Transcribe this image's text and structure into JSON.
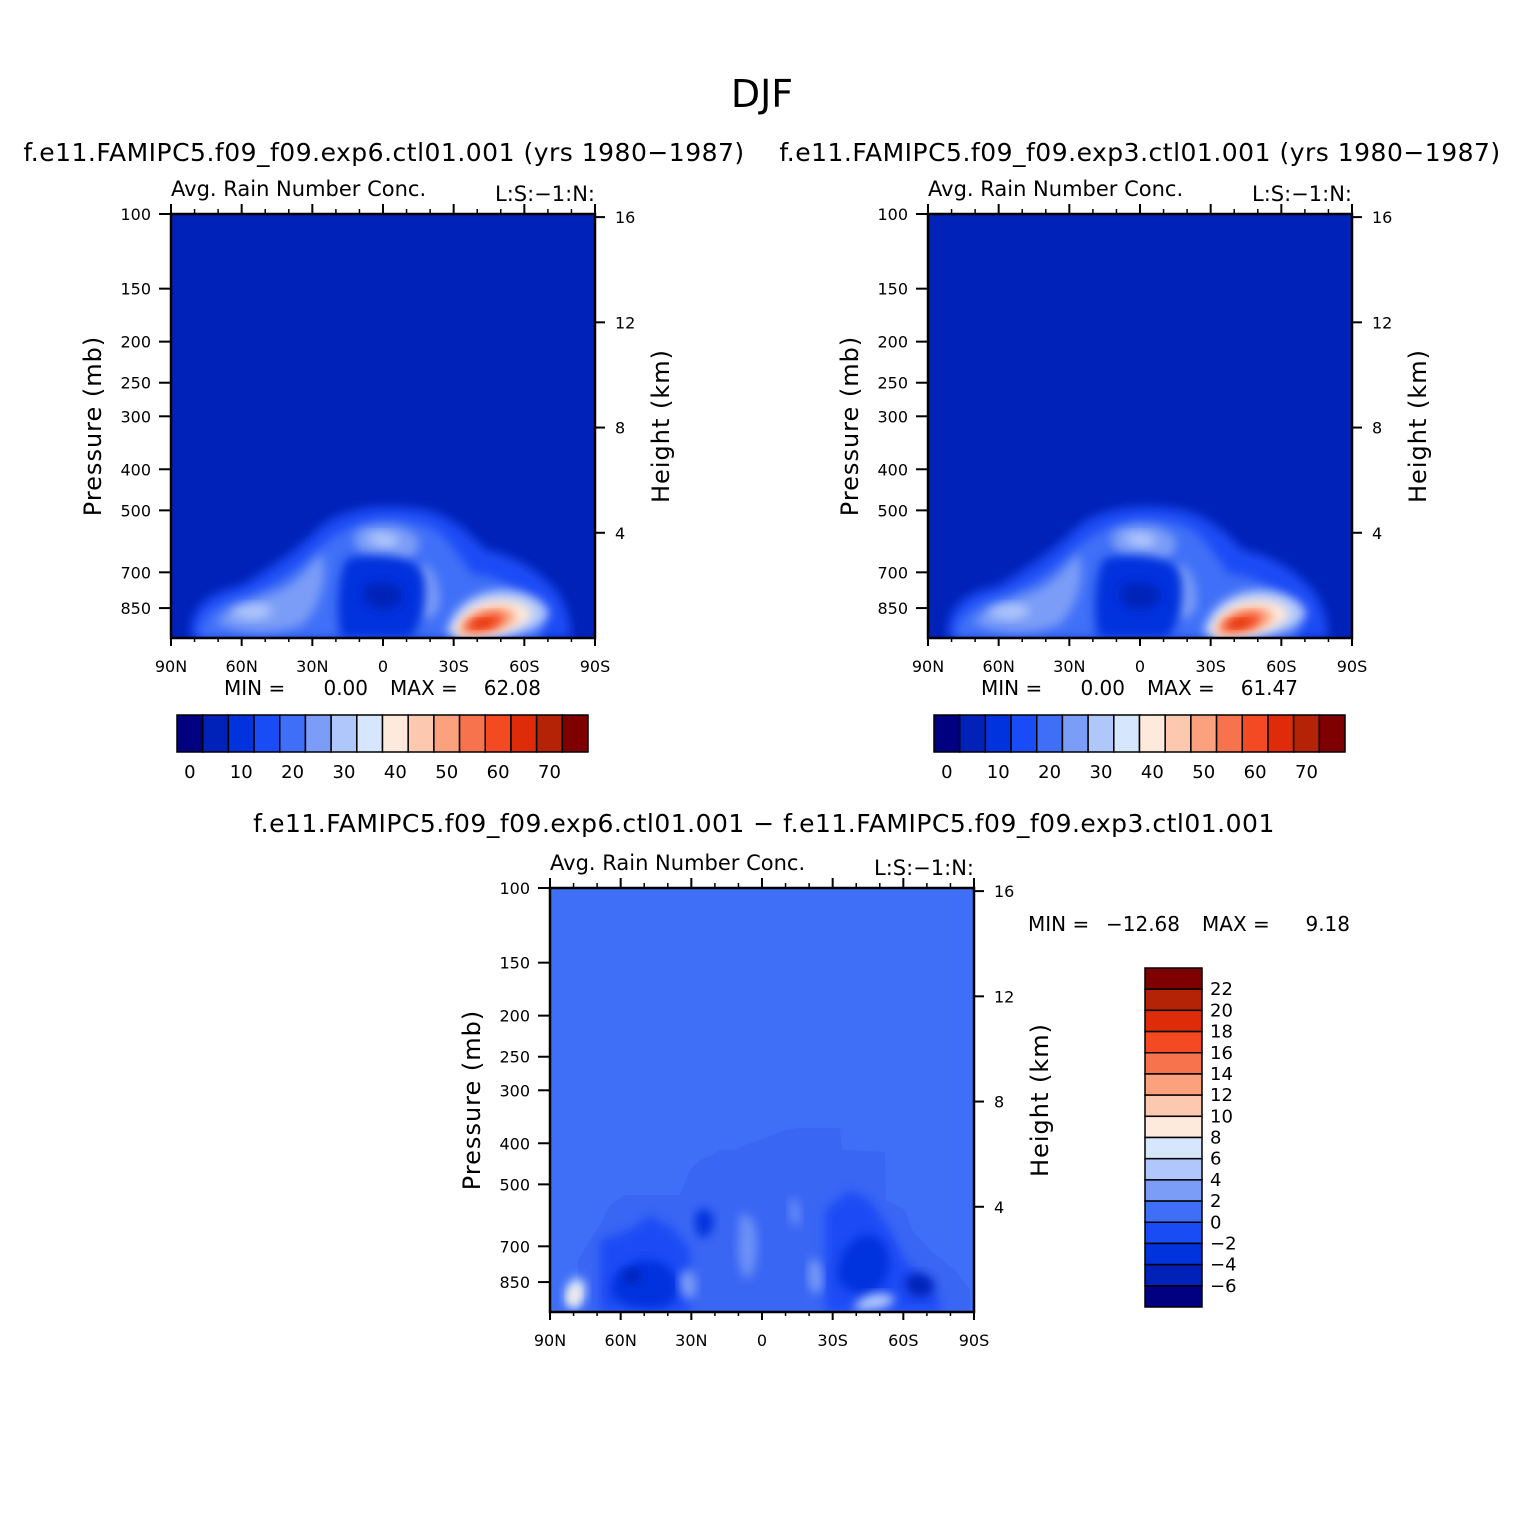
{
  "figure_title": "DJF",
  "colors": {
    "levels_abs": [
      "#000080",
      "#0022b8",
      "#0033dd",
      "#1a4cf5",
      "#3f6ff7",
      "#7c9df7",
      "#b0c7fb",
      "#d6e6fc",
      "#feeadc",
      "#fdc8b0",
      "#fba17e",
      "#f7734e",
      "#f34a24",
      "#de2c0a",
      "#b52306",
      "#7e0000"
    ],
    "levels_diff": [
      "#000080",
      "#0022b8",
      "#0033dd",
      "#1a4cf5",
      "#3f6ff7",
      "#7c9df7",
      "#b0c7fb",
      "#d6e6fc",
      "#feeadc",
      "#fdc8b0",
      "#fba17e",
      "#f7734e",
      "#f34a24",
      "#de2c0a",
      "#b52306",
      "#7e0000"
    ]
  },
  "panels": [
    {
      "subtitle": "f.e11.FAMIPC5.f09_f09.exp6.ctl01.001 (yrs 1980−1987)",
      "left_title": "Avg. Rain Number Conc.",
      "right_title": "L:S:−1:N:",
      "ylabel": "Pressure (mb)",
      "ylabel_right": "Height (km)",
      "stat_min_label": "MIN =",
      "stat_min": "0.00",
      "stat_max_label": "MAX =",
      "stat_max": "62.08"
    },
    {
      "subtitle": "f.e11.FAMIPC5.f09_f09.exp3.ctl01.001 (yrs 1980−1987)",
      "left_title": "Avg. Rain Number Conc.",
      "right_title": "L:S:−1:N:",
      "ylabel": "Pressure (mb)",
      "ylabel_right": "Height (km)",
      "stat_min_label": "MIN =",
      "stat_min": "0.00",
      "stat_max_label": "MAX =",
      "stat_max": "61.47"
    },
    {
      "subtitle": "f.e11.FAMIPC5.f09_f09.exp6.ctl01.001 − f.e11.FAMIPC5.f09_f09.exp3.ctl01.001",
      "left_title": "Avg. Rain Number Conc.",
      "right_title": "L:S:−1:N:",
      "ylabel": "Pressure (mb)",
      "ylabel_right": "Height (km)",
      "stat_min_label": "MIN =",
      "stat_min": "−12.68",
      "stat_max_label": "MAX =",
      "stat_max": "9.18"
    }
  ],
  "chart_data": [
    {
      "type": "heatmap",
      "title": "Avg. Rain Number Conc.",
      "xlabel": "",
      "ylabel": "Pressure (mb)",
      "y2label": "Height (km)",
      "x_ticks": [
        "90N",
        "60N",
        "30N",
        "0",
        "30S",
        "60S",
        "90S"
      ],
      "x_tick_values": [
        90,
        60,
        30,
        0,
        -30,
        -60,
        -90
      ],
      "y_ticks": [
        "100",
        "150",
        "200",
        "250",
        "300",
        "400",
        "500",
        "700",
        "850"
      ],
      "y_tick_values": [
        100,
        150,
        200,
        250,
        300,
        400,
        500,
        700,
        850
      ],
      "y2_ticks": [
        "16",
        "12",
        "8",
        "4"
      ],
      "y2_tick_values": [
        16,
        12,
        8,
        4
      ],
      "ylim": [
        100,
        1000
      ],
      "y_scale": "log",
      "xlim": [
        90,
        -90
      ],
      "min": 0.0,
      "max": 62.08,
      "colorbar_labels": [
        "0",
        "10",
        "20",
        "30",
        "40",
        "50",
        "60",
        "70"
      ],
      "colorbar_values": [
        0,
        10,
        20,
        30,
        40,
        50,
        60,
        70
      ],
      "colorbar_placement": "bottom"
    },
    {
      "type": "heatmap",
      "title": "Avg. Rain Number Conc.",
      "xlabel": "",
      "ylabel": "Pressure (mb)",
      "y2label": "Height (km)",
      "x_ticks": [
        "90N",
        "60N",
        "30N",
        "0",
        "30S",
        "60S",
        "90S"
      ],
      "x_tick_values": [
        90,
        60,
        30,
        0,
        -30,
        -60,
        -90
      ],
      "y_ticks": [
        "100",
        "150",
        "200",
        "250",
        "300",
        "400",
        "500",
        "700",
        "850"
      ],
      "y_tick_values": [
        100,
        150,
        200,
        250,
        300,
        400,
        500,
        700,
        850
      ],
      "y2_ticks": [
        "16",
        "12",
        "8",
        "4"
      ],
      "y2_tick_values": [
        16,
        12,
        8,
        4
      ],
      "ylim": [
        100,
        1000
      ],
      "y_scale": "log",
      "xlim": [
        90,
        -90
      ],
      "min": 0.0,
      "max": 61.47,
      "colorbar_labels": [
        "0",
        "10",
        "20",
        "30",
        "40",
        "50",
        "60",
        "70"
      ],
      "colorbar_values": [
        0,
        10,
        20,
        30,
        40,
        50,
        60,
        70
      ],
      "colorbar_placement": "bottom"
    },
    {
      "type": "heatmap",
      "title": "Avg. Rain Number Conc.",
      "xlabel": "",
      "ylabel": "Pressure (mb)",
      "y2label": "Height (km)",
      "x_ticks": [
        "90N",
        "60N",
        "30N",
        "0",
        "30S",
        "60S",
        "90S"
      ],
      "x_tick_values": [
        90,
        60,
        30,
        0,
        -30,
        -60,
        -90
      ],
      "y_ticks": [
        "100",
        "150",
        "200",
        "250",
        "300",
        "400",
        "500",
        "700",
        "850"
      ],
      "y_tick_values": [
        100,
        150,
        200,
        250,
        300,
        400,
        500,
        700,
        850
      ],
      "y2_ticks": [
        "16",
        "12",
        "8",
        "4"
      ],
      "y2_tick_values": [
        16,
        12,
        8,
        4
      ],
      "ylim": [
        100,
        1000
      ],
      "y_scale": "log",
      "xlim": [
        90,
        -90
      ],
      "min": -12.68,
      "max": 9.18,
      "colorbar_labels": [
        "22",
        "20",
        "18",
        "16",
        "14",
        "12",
        "10",
        "8",
        "6",
        "4",
        "2",
        "0",
        "−2",
        "−4",
        "−6"
      ],
      "colorbar_values": [
        22,
        20,
        18,
        16,
        14,
        12,
        10,
        8,
        6,
        4,
        2,
        0,
        -2,
        -4,
        -6
      ],
      "colorbar_placement": "right"
    }
  ]
}
